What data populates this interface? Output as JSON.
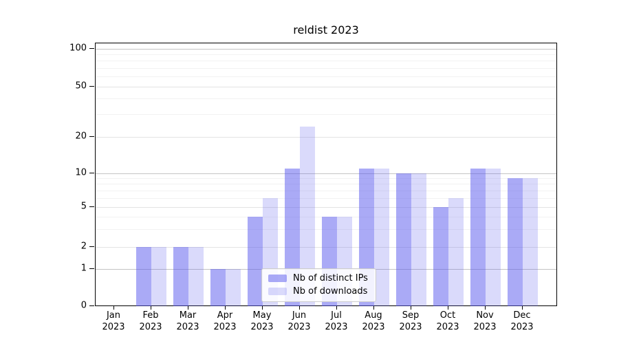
{
  "chart_data": {
    "type": "bar",
    "title": "reldist 2023",
    "categories": [
      "Jan 2023",
      "Feb 2023",
      "Mar 2023",
      "Apr 2023",
      "May 2023",
      "Jun 2023",
      "Jul 2023",
      "Aug 2023",
      "Sep 2023",
      "Oct 2023",
      "Nov 2023",
      "Dec 2023"
    ],
    "series": [
      {
        "name": "Nb of distinct IPs",
        "color": "rgba(85,85,238,0.5)",
        "values": [
          0,
          2,
          2,
          1,
          4,
          11,
          4,
          11,
          10,
          5,
          11,
          9
        ]
      },
      {
        "name": "Nb of downloads",
        "color": "rgba(85,85,238,0.22)",
        "values": [
          0,
          2,
          2,
          1,
          6,
          24,
          4,
          11,
          10,
          6,
          11,
          9
        ]
      }
    ],
    "xlabel": "",
    "ylabel": "",
    "yscale": "symlog",
    "y_major_ticks": [
      0,
      1,
      2,
      5,
      10,
      20,
      50,
      100
    ],
    "y_minor_ticks": [
      3,
      4,
      6,
      7,
      8,
      9,
      30,
      40,
      60,
      70,
      80,
      90
    ],
    "ylim": [
      0,
      110
    ],
    "grid": true,
    "legend_position": "lower center",
    "colors": {
      "bar_dark_rendered": "#aaaaf6",
      "bar_light_rendered": "#d9d9f7",
      "grid_major_pow10": "#c4c4c4",
      "grid_major_other": "#e3e3e3",
      "grid_minor": "#f2f2f2",
      "spine": "#000000",
      "background": "#ffffff"
    }
  }
}
